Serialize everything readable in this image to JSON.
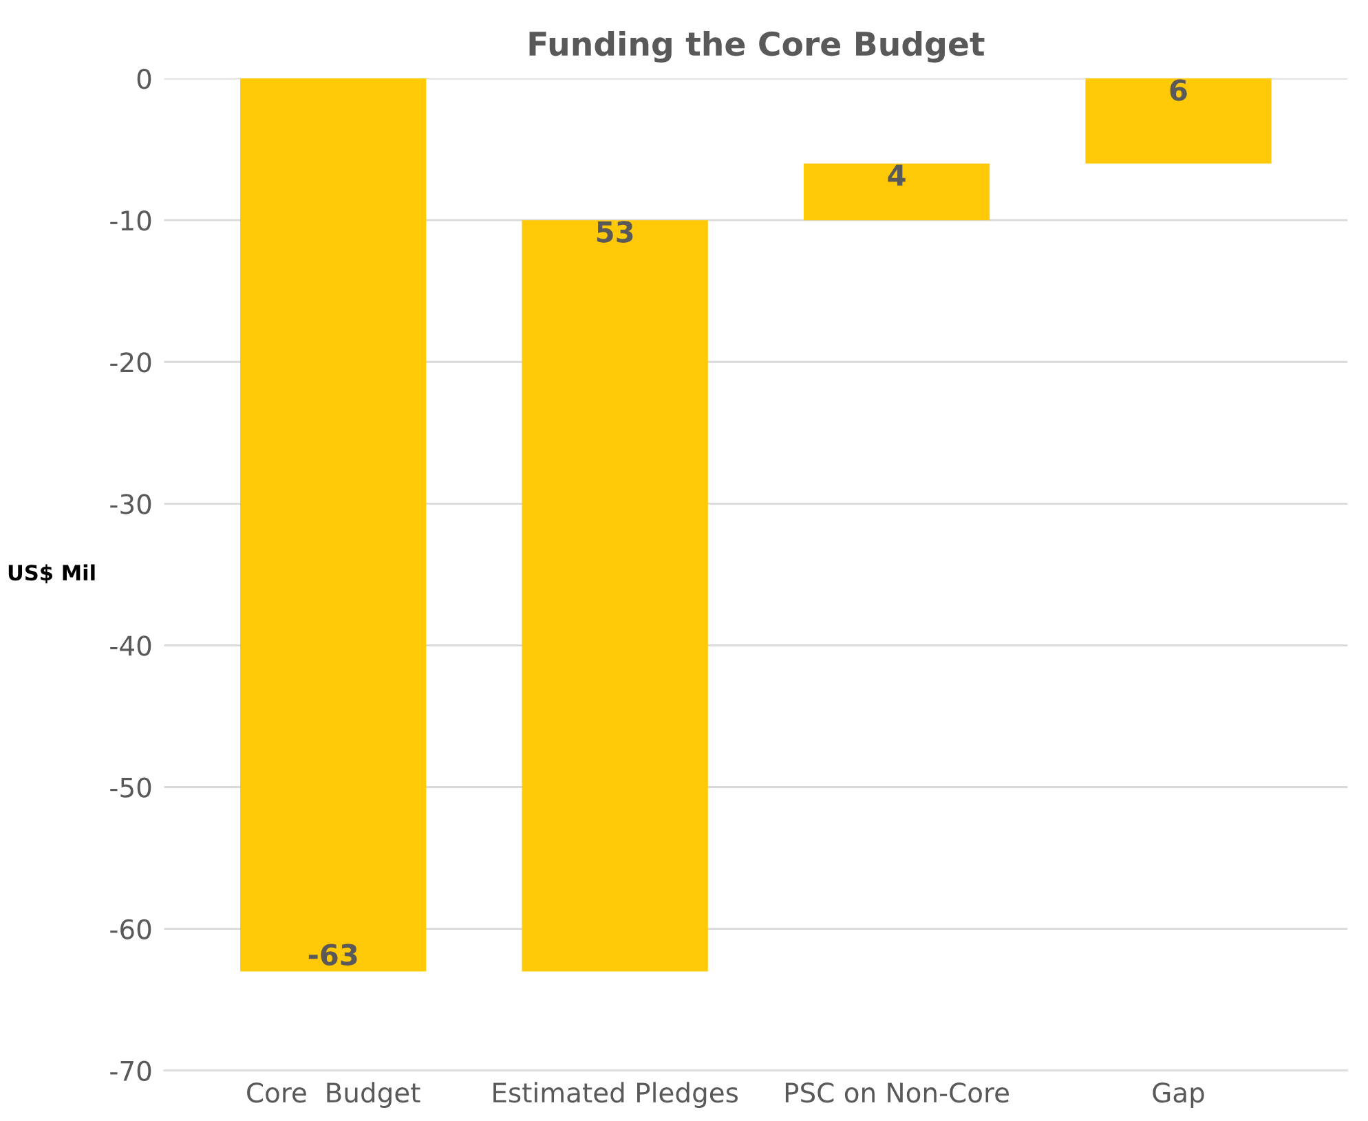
{
  "chart_data": {
    "type": "bar",
    "title": "Funding the Core Budget",
    "ylabel": "US$ Mil",
    "categories": [
      "Core  Budget",
      "Estimated Pledges",
      "PSC on Non-Core",
      "Gap"
    ],
    "values": [
      -63,
      53,
      4,
      6
    ],
    "base": [
      0,
      -63,
      -10,
      -6
    ],
    "color": "#ffc907",
    "data_labels": true,
    "ylim": [
      -70,
      0
    ],
    "yticks": [
      0,
      -10,
      -20,
      -30,
      -40,
      -50,
      -60,
      -70
    ],
    "grid": "y"
  }
}
